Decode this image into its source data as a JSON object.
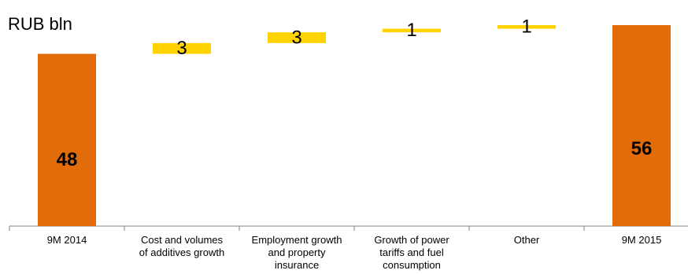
{
  "unit_label": "RUB bln",
  "colors": {
    "total": "#E36C0A",
    "delta": "#FFD200",
    "axis": "#808080",
    "text": "#000000"
  },
  "chart_data": {
    "type": "bar",
    "subtype": "waterfall",
    "ylabel": "RUB bln",
    "categories": [
      "9M 2014",
      "Cost and volumes of additives growth",
      "Employment growth and property insurance",
      "Growth of power tariffs and fuel consumption",
      "Other",
      "9M 2015"
    ],
    "category_lines": [
      [
        "9M 2014"
      ],
      [
        "Cost and volumes",
        "of additives growth"
      ],
      [
        "Employment growth",
        "and property",
        "insurance"
      ],
      [
        "Growth of power",
        "tariffs and fuel",
        "consumption"
      ],
      [
        "Other"
      ],
      [
        "9M 2015"
      ]
    ],
    "values": [
      48,
      3,
      3,
      1,
      1,
      56
    ],
    "labels": [
      "48",
      "3",
      "3",
      "1",
      "1",
      "56"
    ],
    "kinds": [
      "total",
      "delta",
      "delta",
      "delta",
      "delta",
      "total"
    ],
    "ylim": [
      0,
      58
    ]
  }
}
